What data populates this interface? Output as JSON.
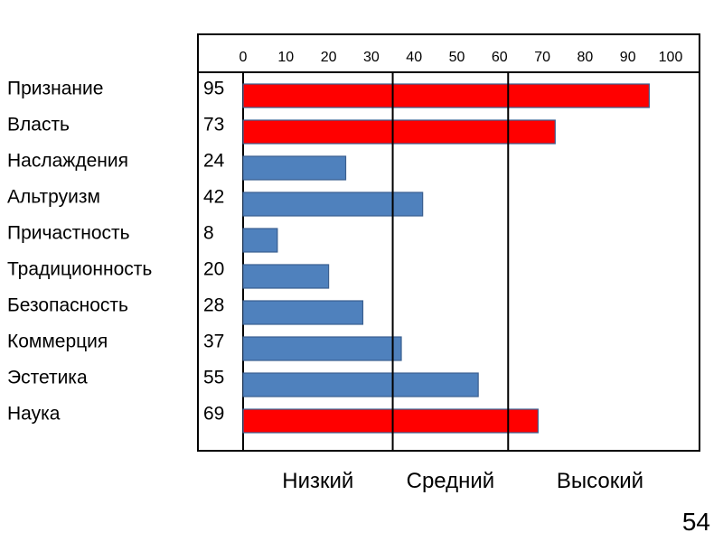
{
  "chart_data": {
    "type": "bar",
    "orientation": "horizontal",
    "categories": [
      "Признание",
      "Власть",
      "Наслаждения",
      "Альтруизм",
      "Причастность",
      "Традиционность",
      "Безопасность",
      "Коммерция",
      "Эстетика",
      "Наука"
    ],
    "values": [
      95,
      73,
      24,
      42,
      8,
      20,
      28,
      37,
      55,
      69
    ],
    "value_labels": [
      "95",
      "73",
      "24",
      "42",
      "8",
      "20",
      "28",
      "37",
      "55",
      "69"
    ],
    "bar_colors": [
      "#ff0000",
      "#ff0000",
      "#4f81bd",
      "#4f81bd",
      "#4f81bd",
      "#4f81bd",
      "#4f81bd",
      "#4f81bd",
      "#4f81bd",
      "#ff0000"
    ],
    "xlim": [
      0,
      100
    ],
    "x_ticks": [
      0,
      10,
      20,
      30,
      40,
      50,
      60,
      70,
      80,
      90,
      100
    ],
    "x_tick_labels": [
      "0",
      "10",
      "20",
      "30",
      "40",
      "50",
      "60",
      "70",
      "80",
      "90",
      "100"
    ],
    "x_axis_position": "top",
    "threshold_lines": [
      35,
      62
    ],
    "level_labels": [
      "Низкий",
      "Средний",
      "Высокий"
    ],
    "title": "",
    "xlabel": "",
    "ylabel": "",
    "grid": false,
    "legend": "none"
  },
  "page_number": "54"
}
